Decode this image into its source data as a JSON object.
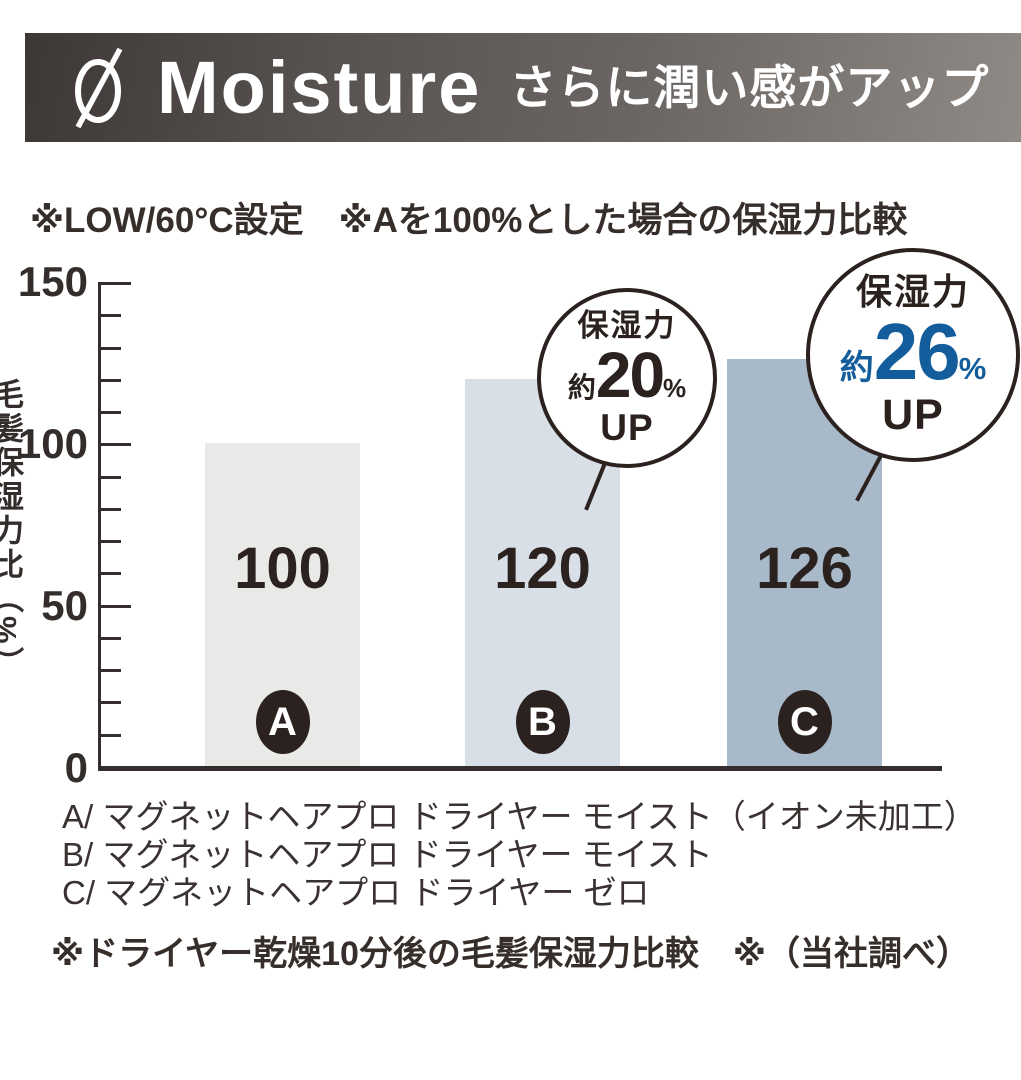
{
  "banner": {
    "logo_icon": "slashed-zero-icon",
    "title": "Moisture",
    "subtitle": "さらに潤い感がアップ"
  },
  "note": "※LOW/60°C設定　※Aを100%とした場合の保湿力比較",
  "chart_data": {
    "type": "bar",
    "categories": [
      "A",
      "B",
      "C"
    ],
    "values": [
      100,
      120,
      126
    ],
    "value_labels": [
      "100",
      "120",
      "126"
    ],
    "ylabel": "毛髪保湿力比（%）",
    "ylim": [
      0,
      150
    ],
    "ytick_labels": [
      "0",
      "50",
      "100",
      "150"
    ],
    "yticks_major": [
      50,
      100,
      150
    ],
    "ytick_minor_step": 10,
    "bar_colors": [
      "#e9e9e7",
      "#d9dfe7",
      "#a8bac9"
    ],
    "grid": false,
    "legend_position": "below",
    "annotations": [
      {
        "target": "B",
        "text": "保湿力 約20% UP"
      },
      {
        "target": "C",
        "text": "保湿力 約26% UP"
      }
    ]
  },
  "callouts": {
    "b": {
      "label": "保湿力",
      "approx": "約",
      "value": "20",
      "unit": "%",
      "suffix": "UP"
    },
    "c": {
      "label": "保湿力",
      "approx": "約",
      "value": "26",
      "unit": "%",
      "suffix": "UP"
    }
  },
  "legend": {
    "items": [
      "A/ マグネットヘアプロ ドライヤー モイスト（イオン未加工）",
      "B/ マグネットヘアプロ ドライヤー モイスト",
      "C/ マグネットヘアプロ ドライヤー ゼロ"
    ]
  },
  "footnote": "※ドライヤー乾燥10分後の毛髪保湿力比較　※（当社調べ）",
  "colors": {
    "accent_blue": "#145d9d",
    "ink": "#2b2220",
    "axis": "#332e2b",
    "banner_dark": "#3d3836",
    "banner_light": "#8f8a85"
  }
}
